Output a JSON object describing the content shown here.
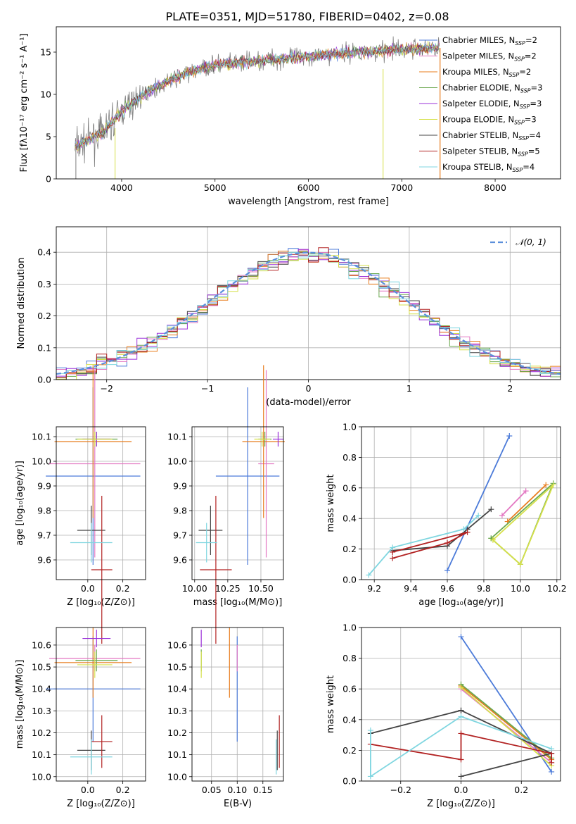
{
  "figure": {
    "title": "PLATE=0351, MJD=51780, FIBERID=0402, z=0.08"
  },
  "colors": {
    "data": "#7f7f7f",
    "chabrier_miles": "#4c7bd9",
    "salpeter_miles": "#e377c2",
    "kroupa_miles": "#e87d1e",
    "chabrier_elodie": "#6aa84f",
    "salpeter_elodie": "#9b30d9",
    "kroupa_elodie": "#d6e04a",
    "chabrier_stelib": "#444444",
    "salpeter_stelib": "#b22222",
    "kroupa_stelib": "#7fd6e0",
    "normal": "#5b8fdb",
    "grid": "#b0b0b0"
  },
  "legend_entries": [
    {
      "label": "Chabrier MILES, N",
      "sub": "SSP",
      "tail": "=2",
      "color_key": "chabrier_miles"
    },
    {
      "label": "Salpeter MILES, N",
      "sub": "SSP",
      "tail": "=2",
      "color_key": "salpeter_miles"
    },
    {
      "label": "Kroupa MILES, N",
      "sub": "SSP",
      "tail": "=2",
      "color_key": "kroupa_miles"
    },
    {
      "label": "Chabrier ELODIE, N",
      "sub": "SSP",
      "tail": "=3",
      "color_key": "chabrier_elodie"
    },
    {
      "label": "Salpeter ELODIE, N",
      "sub": "SSP",
      "tail": "=3",
      "color_key": "salpeter_elodie"
    },
    {
      "label": "Kroupa ELODIE, N",
      "sub": "SSP",
      "tail": "=3",
      "color_key": "kroupa_elodie"
    },
    {
      "label": "Chabrier STELIB, N",
      "sub": "SSP",
      "tail": "=4",
      "color_key": "chabrier_stelib"
    },
    {
      "label": "Salpeter STELIB, N",
      "sub": "SSP",
      "tail": "=5",
      "color_key": "salpeter_stelib"
    },
    {
      "label": "Kroupa STELIB, N",
      "sub": "SSP",
      "tail": "=4",
      "color_key": "kroupa_stelib"
    }
  ],
  "chart_data": [
    {
      "id": "spectrum",
      "type": "line",
      "xlabel": "wavelength [Angstrom, rest frame]",
      "ylabel": "Flux [fλ10⁻¹⁷ erg cm⁻² s⁻¹ A⁻¹]",
      "xlim": [
        3300,
        8700
      ],
      "ylim": [
        0,
        18
      ],
      "xticks": [
        4000,
        5000,
        6000,
        7000,
        8000
      ],
      "yticks": [
        0,
        5,
        10,
        15
      ],
      "grid": false,
      "legend_loc": "upper right",
      "continuum": {
        "x": [
          3500,
          3800,
          4000,
          4300,
          4700,
          5000,
          5500,
          6000,
          6500,
          7000,
          7400
        ],
        "y": [
          3.8,
          5.5,
          8.0,
          10.5,
          12.5,
          13.5,
          14.0,
          14.5,
          15.0,
          15.3,
          15.6
        ]
      }
    },
    {
      "id": "residuals",
      "type": "area",
      "xlabel": "(data-model)/error",
      "ylabel": "Normed distribution",
      "xlim": [
        -2.5,
        2.5
      ],
      "ylim": [
        0,
        0.48
      ],
      "xticks": [
        -2,
        -1,
        0,
        1,
        2
      ],
      "yticks": [
        0.0,
        0.1,
        0.2,
        0.3,
        0.4
      ],
      "grid": true,
      "legend_loc": "upper right",
      "legend_label": "𝒩(0, 1)",
      "bin_width": 0.1
    },
    {
      "id": "age_vs_Z",
      "type": "scatter",
      "xlabel": "Z [log₁₀(Z/Z⊙)]",
      "ylabel": "age  [log₁₀(age/yr)]",
      "xlim": [
        -0.18,
        0.33
      ],
      "ylim": [
        9.52,
        10.14
      ],
      "xticks": [
        0.0,
        0.2
      ],
      "yticks": [
        9.6,
        9.7,
        9.8,
        9.9,
        10.0,
        10.1
      ],
      "grid": true
    },
    {
      "id": "age_vs_mass",
      "type": "scatter",
      "xlabel": "mass [log₁₀(M/M⊙)]",
      "xlim": [
        9.98,
        10.67
      ],
      "ylim": [
        9.52,
        10.14
      ],
      "xticks": [
        10.0,
        10.25,
        10.5
      ],
      "yticks": [
        9.6,
        9.7,
        9.8,
        9.9,
        10.0,
        10.1
      ],
      "grid": true
    },
    {
      "id": "weight_vs_age",
      "type": "line",
      "xlabel": "age  [log₁₀(age/yr)]",
      "ylabel": "mass weight",
      "xlim": [
        9.13,
        10.22
      ],
      "ylim": [
        0,
        1.0
      ],
      "xticks": [
        9.2,
        9.4,
        9.6,
        9.8,
        10.0,
        10.2
      ],
      "yticks": [
        0.0,
        0.2,
        0.4,
        0.6,
        0.8,
        1.0
      ],
      "grid": true,
      "series": [
        {
          "color_key": "chabrier_miles",
          "x": [
            9.6,
            9.94
          ],
          "y": [
            0.06,
            0.94
          ]
        },
        {
          "color_key": "salpeter_miles",
          "x": [
            9.9,
            10.03
          ],
          "y": [
            0.42,
            0.58
          ]
        },
        {
          "color_key": "kroupa_miles",
          "x": [
            9.93,
            10.14
          ],
          "y": [
            0.38,
            0.62
          ]
        },
        {
          "color_key": "chabrier_elodie",
          "x": [
            9.84,
            10.0,
            10.18,
            9.84
          ],
          "y": [
            0.27,
            0.1,
            0.63,
            0.27
          ]
        },
        {
          "color_key": "kroupa_elodie",
          "x": [
            9.85,
            10.0,
            10.18,
            9.85
          ],
          "y": [
            0.26,
            0.1,
            0.62,
            0.26
          ]
        },
        {
          "color_key": "chabrier_stelib",
          "x": [
            9.3,
            9.6,
            9.71,
            9.84
          ],
          "y": [
            0.19,
            0.22,
            0.33,
            0.46
          ]
        },
        {
          "color_key": "salpeter_stelib",
          "x": [
            9.3,
            9.6,
            9.71,
            9.3
          ],
          "y": [
            0.14,
            0.24,
            0.31,
            0.18
          ]
        },
        {
          "color_key": "kroupa_stelib",
          "x": [
            9.17,
            9.3,
            9.69,
            9.77
          ],
          "y": [
            0.03,
            0.21,
            0.33,
            0.42
          ]
        }
      ]
    },
    {
      "id": "mass_vs_Z",
      "type": "scatter",
      "xlabel": "Z [log₁₀(Z/Z⊙)]",
      "ylabel": "mass [log₁₀(M/M⊙)]",
      "xlim": [
        -0.18,
        0.33
      ],
      "ylim": [
        9.98,
        10.68
      ],
      "xticks": [
        0.0,
        0.2
      ],
      "yticks": [
        10.0,
        10.1,
        10.2,
        10.3,
        10.4,
        10.5,
        10.6
      ],
      "grid": true
    },
    {
      "id": "mass_vs_ebv",
      "type": "scatter",
      "xlabel": "E(B-V)",
      "xlim": [
        0.012,
        0.19
      ],
      "ylim": [
        9.98,
        10.68
      ],
      "xticks": [
        0.05,
        0.1,
        0.15
      ],
      "yticks": [
        10.0,
        10.1,
        10.2,
        10.3,
        10.4,
        10.5,
        10.6
      ],
      "grid": true
    },
    {
      "id": "weight_vs_Z",
      "type": "line",
      "xlabel": "Z [log₁₀(Z/Z⊙)]",
      "ylabel": "mass weight",
      "xlim": [
        -0.33,
        0.33
      ],
      "ylim": [
        0,
        1.0
      ],
      "xticks": [
        -0.2,
        0.0,
        0.2
      ],
      "yticks": [
        0.0,
        0.2,
        0.4,
        0.6,
        0.8,
        1.0
      ],
      "grid": true,
      "series": [
        {
          "color_key": "chabrier_miles",
          "x": [
            0.0,
            0.3
          ],
          "y": [
            0.94,
            0.06
          ]
        },
        {
          "color_key": "salpeter_miles",
          "x": [
            0.0,
            0.3
          ],
          "y": [
            0.6,
            0.12
          ]
        },
        {
          "color_key": "kroupa_miles",
          "x": [
            0.0,
            0.3
          ],
          "y": [
            0.62,
            0.14
          ]
        },
        {
          "color_key": "chabrier_elodie",
          "x": [
            0.0,
            0.3
          ],
          "y": [
            0.63,
            0.15
          ]
        },
        {
          "color_key": "kroupa_elodie",
          "x": [
            0.0,
            0.3
          ],
          "y": [
            0.61,
            0.1
          ]
        },
        {
          "color_key": "chabrier_stelib",
          "x": [
            -0.3,
            0.0,
            0.0,
            0.3,
            0.0
          ],
          "y": [
            0.31,
            0.46,
            0.46,
            0.18,
            0.03
          ]
        },
        {
          "color_key": "salpeter_stelib",
          "x": [
            -0.3,
            0.0,
            0.0,
            0.3,
            0.3
          ],
          "y": [
            0.24,
            0.14,
            0.31,
            0.18,
            0.12
          ]
        },
        {
          "color_key": "kroupa_stelib",
          "x": [
            -0.3,
            -0.3,
            0.0,
            0.3
          ],
          "y": [
            0.33,
            0.03,
            0.42,
            0.21
          ]
        }
      ]
    }
  ],
  "error_points": [
    {
      "color_key": "chabrier_miles",
      "Z": 0.03,
      "dZ": 0.27,
      "age": 9.94,
      "dage": 0.36,
      "mass": 10.4,
      "dmass": 0.24,
      "mass_m": 10.4,
      "ebv": 0.1,
      "debv": 0.0
    },
    {
      "color_key": "salpeter_miles",
      "Z": 0.04,
      "dZ": 0.26,
      "age": 9.99,
      "dage": 0.38,
      "mass": 10.54,
      "dmass": 0.06,
      "mass_m": 10.54,
      "ebv": 0.1,
      "debv": 0.0
    },
    {
      "color_key": "kroupa_miles",
      "Z": 0.03,
      "dZ": 0.22,
      "age": 10.08,
      "dage": 0.31,
      "mass": 10.52,
      "dmass": 0.16,
      "mass_m": 10.52,
      "ebv": 0.085,
      "debv": 0.0
    },
    {
      "color_key": "chabrier_elodie",
      "Z": 0.05,
      "dZ": 0.12,
      "age": 10.09,
      "dage": 0.03,
      "mass": 10.53,
      "dmass": 0.05,
      "mass_m": 10.53,
      "ebv": 0.03,
      "debv": 0.0
    },
    {
      "color_key": "salpeter_elodie",
      "Z": 0.05,
      "dZ": 0.08,
      "age": 10.09,
      "dage": 0.03,
      "mass": 10.63,
      "dmass": 0.04,
      "mass_m": 10.63,
      "ebv": 0.03,
      "debv": 0.0
    },
    {
      "color_key": "kroupa_elodie",
      "Z": 0.04,
      "dZ": 0.1,
      "age": 10.09,
      "dage": 0.03,
      "mass": 10.51,
      "dmass": 0.06,
      "mass_m": 10.51,
      "ebv": 0.03,
      "debv": 0.0
    },
    {
      "color_key": "chabrier_stelib",
      "Z": 0.02,
      "dZ": 0.08,
      "age": 9.72,
      "dage": 0.1,
      "mass": 10.12,
      "dmass": 0.09,
      "mass_m": 10.12,
      "ebv": 0.178,
      "debv": 0.0
    },
    {
      "color_key": "salpeter_stelib",
      "Z": 0.08,
      "dZ": 0.06,
      "age": 9.56,
      "dage": 0.3,
      "mass": 10.16,
      "dmass": 0.12,
      "mass_m": 10.16,
      "ebv": 0.182,
      "debv": 0.0
    },
    {
      "color_key": "kroupa_stelib",
      "Z": 0.02,
      "dZ": 0.12,
      "age": 9.67,
      "dage": 0.08,
      "mass": 10.09,
      "dmass": 0.08,
      "mass_m": 10.09,
      "ebv": 0.176,
      "debv": 0.0
    }
  ]
}
